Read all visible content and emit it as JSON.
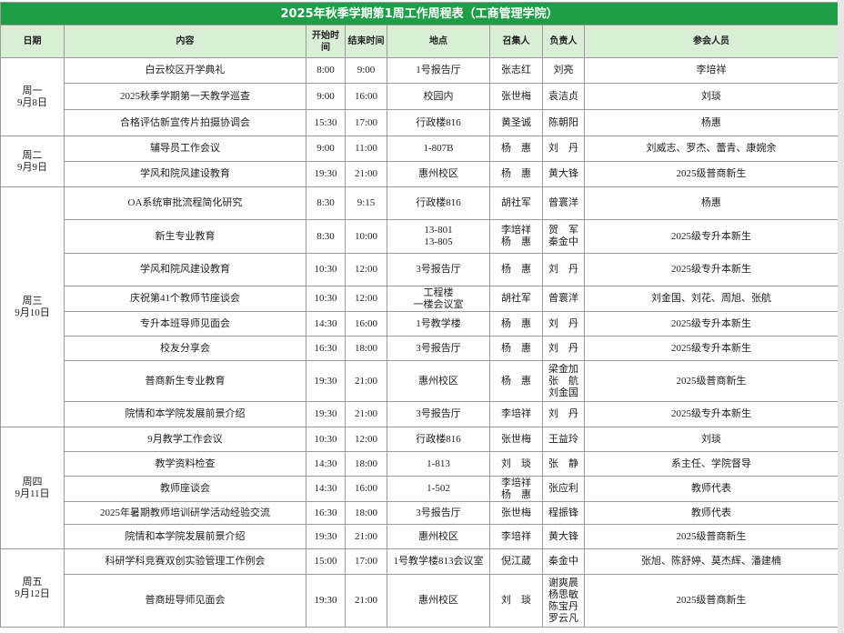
{
  "title": "2025年秋季学期第1周工作周程表（工商管理学院）",
  "headers": [
    "日期",
    "内容",
    "开始时间",
    "结束时间",
    "地点",
    "召集人",
    "负责人",
    "参会人员"
  ],
  "days": [
    {
      "day": "周一",
      "date": "9月8日",
      "events": [
        [
          "白云校区开学典礼",
          "8:00",
          "9:00",
          "1号报告厅",
          "张志红",
          "刘亮",
          "李培祥"
        ],
        [
          "2025秋季学期第一天教学巡查",
          "9:00",
          "16:00",
          "校园内",
          "张世梅",
          "袁洁贞",
          "刘琰"
        ],
        [
          "合格评估新宣传片拍摄协调会",
          "15:30",
          "17:00",
          "行政楼816",
          "黄圣诚",
          "陈朝阳",
          "杨惠"
        ]
      ]
    },
    {
      "day": "周二",
      "date": "9月9日",
      "events": [
        [
          "辅导员工作会议",
          "9:00",
          "11:00",
          "1-807B",
          "杨　惠",
          "刘　丹",
          "刘威志、罗杰、蕾青、康婉余"
        ],
        [
          "学风和院风建设教育",
          "19:30",
          "21:00",
          "惠州校区",
          "杨　惠",
          "黄大锋",
          "2025级普商新生"
        ]
      ]
    },
    {
      "day": "周三",
      "date": "9月10日",
      "events": [
        [
          "OA系统审批流程简化研究",
          "8:30",
          "9:15",
          "行政楼816",
          "胡社军",
          "曾寰洋",
          "杨惠"
        ],
        [
          "新生专业教育",
          "8:30",
          "10:00",
          "13-801\n13-805",
          "李培祥\n杨　惠",
          "贺　军\n秦金中",
          "2025级专升本新生"
        ],
        [
          "学风和院风建设教育",
          "10:30",
          "12:00",
          "3号报告厅",
          "杨　惠",
          "刘　丹",
          "2025级专升本新生"
        ],
        [
          "庆祝第41个教师节座谈会",
          "10:30",
          "12:00",
          "工程楼\n一楼会议室",
          "胡社军",
          "曾寰洋",
          "刘金国、刘花、周旭、张航"
        ],
        [
          "专升本班导师见面会",
          "14:30",
          "16:00",
          "1号教学楼",
          "杨　惠",
          "刘　丹",
          "2025级专升本新生"
        ],
        [
          "校友分享会",
          "16:30",
          "18:00",
          "3号报告厅",
          "杨　惠",
          "刘　丹",
          "2025级专升本新生"
        ],
        [
          "普商新生专业教育",
          "19:30",
          "21:00",
          "惠州校区",
          "杨　惠",
          "梁金加\n张　航\n刘金国",
          "2025级普商新生"
        ],
        [
          "院情和本学院发展前景介绍",
          "19:30",
          "21:00",
          "3号报告厅",
          "李培祥",
          "刘　丹",
          "2025级专升本新生"
        ]
      ]
    },
    {
      "day": "周四",
      "date": "9月11日",
      "events": [
        [
          "9月教学工作会议",
          "10:30",
          "12:00",
          "行政楼816",
          "张世梅",
          "王益玲",
          "刘琰"
        ],
        [
          "教学资料检查",
          "14:30",
          "18:00",
          "1-813",
          "刘　琰",
          "张　静",
          "系主任、学院督导"
        ],
        [
          "教师座谈会",
          "14:30",
          "16:00",
          "1-502",
          "李培祥\n杨　惠",
          "张应利",
          "教师代表"
        ],
        [
          "2025年暑期教师培训研学活动经验交流",
          "16:30",
          "18:00",
          "3号报告厅",
          "张世梅",
          "程振锋",
          "教师代表"
        ],
        [
          "院情和本学院发展前景介绍",
          "19:30",
          "21:00",
          "惠州校区",
          "李培祥",
          "黄大锋",
          "2025级普商新生"
        ]
      ]
    },
    {
      "day": "周五",
      "date": "9月12日",
      "events": [
        [
          "科研学科竞赛双创实验管理工作例会",
          "15:00",
          "17:00",
          "1号教学楼813会议室",
          "倪江葳",
          "秦金中",
          "张旭、陈舒婷、莫杰辉、潘建楠"
        ],
        [
          "普商班导师见面会",
          "19:30",
          "21:00",
          "惠州校区",
          "刘　琰",
          "谢爽晨\n杨思敏\n陈宝丹\n罗云凡",
          "2025级普商新生"
        ]
      ]
    }
  ]
}
